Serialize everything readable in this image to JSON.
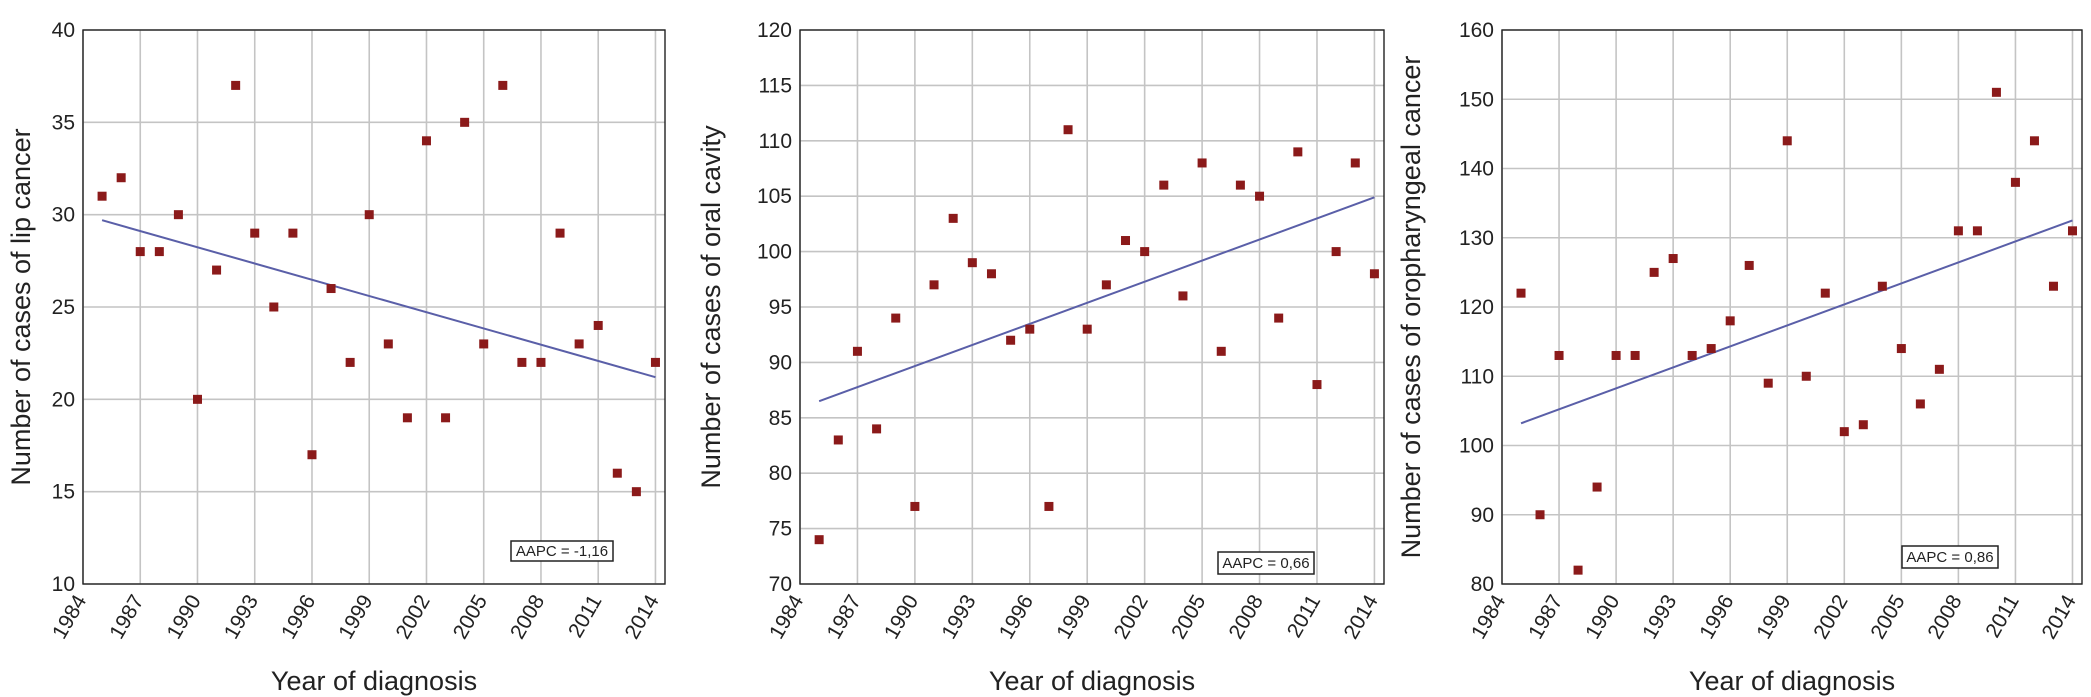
{
  "chart_data": [
    {
      "type": "scatter",
      "xlabel": "Year of diagnosis",
      "ylabel": "Number of cases of lip cancer",
      "x_ticks": [
        "1984",
        "1987",
        "1990",
        "1993",
        "1996",
        "1999",
        "2002",
        "2005",
        "2008",
        "2011",
        "2014"
      ],
      "xlim": [
        1984,
        2014.5
      ],
      "ylim": [
        10,
        40
      ],
      "y_ticks": [
        10,
        15,
        20,
        25,
        30,
        35,
        40
      ],
      "grid": true,
      "annotation": "AAPC = -1,16",
      "trend": {
        "x": [
          1985,
          2014
        ],
        "y": [
          29.7,
          21.2
        ]
      },
      "series": [
        {
          "x": [
            1985,
            1986,
            1987,
            1988,
            1989,
            1990,
            1991,
            1992,
            1993,
            1994,
            1995,
            1996,
            1997,
            1998,
            1999,
            2000,
            2001,
            2002,
            2003,
            2004,
            2005,
            2006,
            2007,
            2008,
            2009,
            2010,
            2011,
            2012,
            2013,
            2014
          ],
          "y": [
            31,
            32,
            28,
            28,
            30,
            20,
            27,
            37,
            29,
            25,
            29,
            17,
            26,
            22,
            30,
            23,
            19,
            34,
            19,
            35,
            23,
            37,
            22,
            22,
            29,
            23,
            24,
            16,
            15,
            22
          ]
        }
      ]
    },
    {
      "type": "scatter",
      "xlabel": "Year of diagnosis",
      "ylabel": "Number of cases of oral cavity",
      "x_ticks": [
        "1984",
        "1987",
        "1990",
        "1993",
        "1996",
        "1999",
        "2002",
        "2005",
        "2008",
        "2011",
        "2014"
      ],
      "xlim": [
        1984,
        2014.5
      ],
      "ylim": [
        70,
        120
      ],
      "y_ticks": [
        70,
        75,
        80,
        85,
        90,
        95,
        100,
        105,
        110,
        115,
        120
      ],
      "grid": true,
      "annotation": "AAPC = 0,66",
      "trend": {
        "x": [
          1985,
          2014
        ],
        "y": [
          86.5,
          104.9
        ]
      },
      "series": [
        {
          "x": [
            1985,
            1986,
            1987,
            1988,
            1989,
            1990,
            1991,
            1992,
            1993,
            1994,
            1995,
            1996,
            1997,
            1998,
            1999,
            2000,
            2001,
            2002,
            2003,
            2004,
            2005,
            2006,
            2007,
            2008,
            2009,
            2010,
            2011,
            2012,
            2013,
            2014
          ],
          "y": [
            74,
            83,
            91,
            84,
            94,
            77,
            97,
            103,
            99,
            98,
            92,
            93,
            77,
            111,
            93,
            97,
            101,
            100,
            106,
            96,
            108,
            91,
            106,
            105,
            94,
            109,
            88,
            100,
            108,
            98
          ]
        }
      ]
    },
    {
      "type": "scatter",
      "xlabel": "Year of diagnosis",
      "ylabel": "Number of cases of oropharyngeal cancer",
      "x_ticks": [
        "1984",
        "1987",
        "1990",
        "1993",
        "1996",
        "1999",
        "2002",
        "2005",
        "2008",
        "2011",
        "2014"
      ],
      "xlim": [
        1984,
        2014.5
      ],
      "ylim": [
        80,
        160
      ],
      "y_ticks": [
        80,
        90,
        100,
        110,
        120,
        130,
        140,
        150,
        160
      ],
      "grid": true,
      "annotation": "AAPC = 0,86",
      "trend": {
        "x": [
          1985,
          2014
        ],
        "y": [
          103.2,
          132.5
        ]
      },
      "series": [
        {
          "x": [
            1985,
            1986,
            1987,
            1988,
            1989,
            1990,
            1991,
            1992,
            1993,
            1994,
            1995,
            1996,
            1997,
            1998,
            1999,
            2000,
            2001,
            2002,
            2003,
            2004,
            2005,
            2006,
            2007,
            2008,
            2009,
            2010,
            2011,
            2012,
            2013,
            2014
          ],
          "y": [
            122,
            90,
            113,
            82,
            94,
            113,
            113,
            125,
            127,
            113,
            114,
            118,
            126,
            109,
            144,
            110,
            122,
            102,
            103,
            123,
            114,
            106,
            111,
            131,
            131,
            151,
            138,
            144,
            123,
            131
          ]
        }
      ]
    }
  ],
  "colors": {
    "points": "#8b1a1a",
    "trend": "#5a5fa8",
    "grid": "#c4c4c4"
  }
}
